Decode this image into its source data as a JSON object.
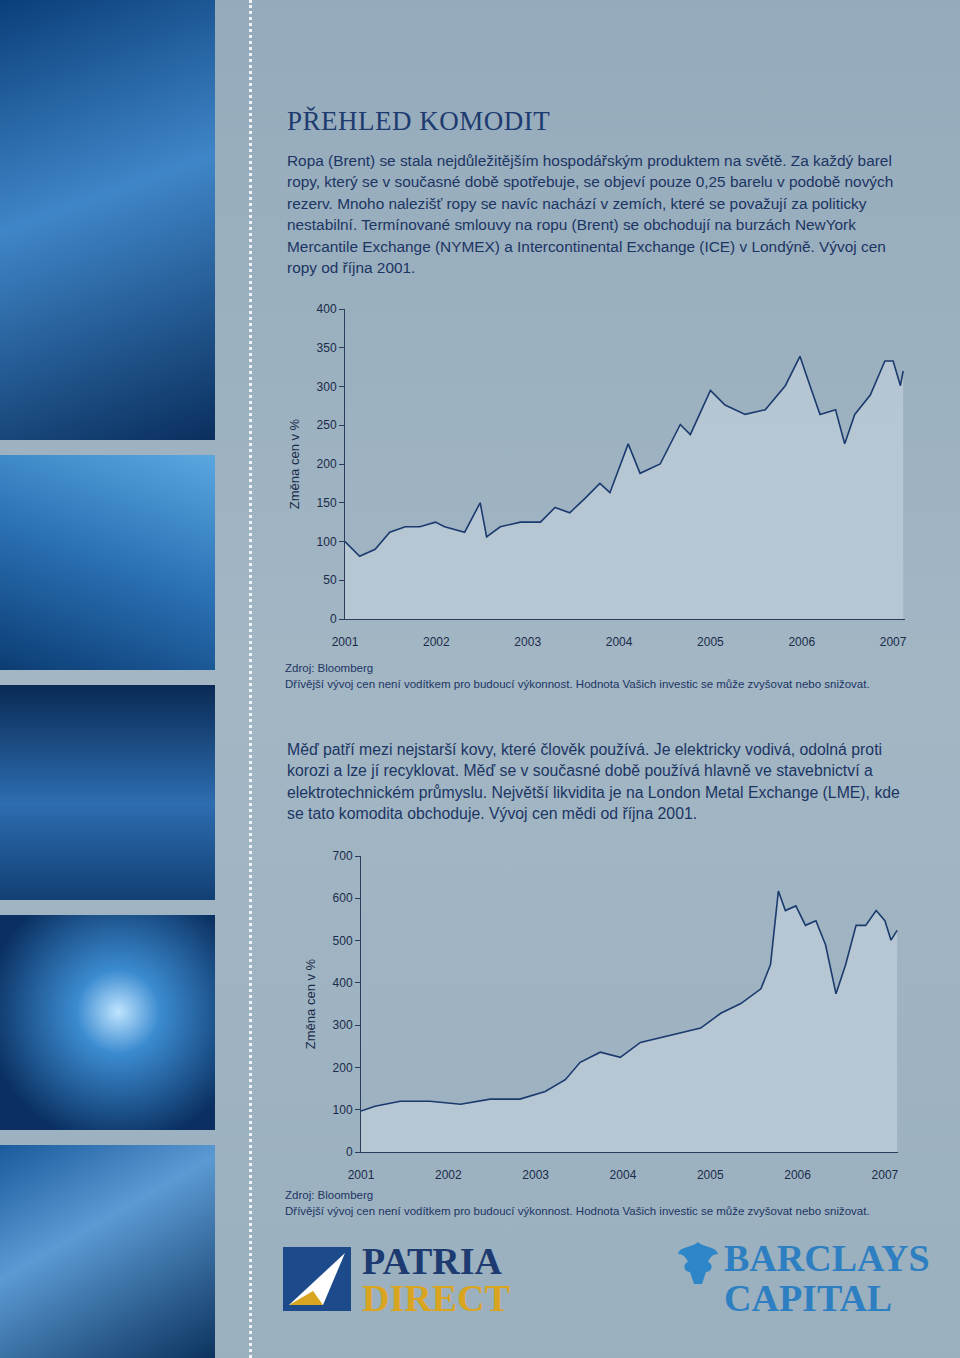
{
  "title": "PŘEHLED KOMODIT",
  "paragraphs": [
    "Ropa (Brent) se stala nejdůležitějším hospodářským produktem na světě. Za každý barel ropy, který se v současné době spotřebuje, se objeví pouze 0,25 barelu v podobě nových rezerv. Mnoho nalezišť ropy se navíc nachází v zemích, které se považují za politicky nestabilní. Termínované smlouvy na ropu (Brent) se obchodují na burzách NewYork Mercantile Exchange (NYMEX) a Intercontinental Exchange (ICE) v Londýně. Vývoj cen ropy od října 2001.",
    "Měď patří mezi nejstarší kovy, které člověk používá. Je elektricky vodivá, odolná proti korozi a lze jí recyklovat. Měď se v současné době používá hlavně ve stavebnictví a elektrotechnickém průmyslu. Největší likvidita je na London Metal Exchange (LME), kde se tato komodita obchoduje. Vývoj cen mědi od října 2001."
  ],
  "sources": [
    {
      "source": "Zdroj: Bloomberg",
      "disclaimer": "Dřívější vývoj cen není vodítkem pro budoucí výkonnost. Hodnota Vašich investic se může zvyšovat nebo snižovat."
    },
    {
      "source": "Zdroj: Bloomberg",
      "disclaimer": "Dřívější vývoj cen není vodítkem pro budoucí výkonnost. Hodnota Vašich investic se může zvyšovat nebo snižovat."
    }
  ],
  "logos": [
    {
      "lines": [
        "PATRIA",
        "DIRECT"
      ]
    },
    {
      "lines": [
        "BARCLAYS",
        "CAPITAL"
      ]
    }
  ],
  "chart_data": [
    {
      "type": "line",
      "y_label": "Změna cen v %",
      "color": "#1b3a6e",
      "x": [
        2001.0,
        2001.16,
        2001.33,
        2001.49,
        2001.66,
        2001.82,
        2001.99,
        2002.09,
        2002.31,
        2002.42,
        2002.48,
        2002.55,
        2002.7,
        2002.92,
        2003.14,
        2003.3,
        2003.46,
        2003.63,
        2003.79,
        2003.9,
        2004.1,
        2004.23,
        2004.45,
        2004.67,
        2004.78,
        2005.0,
        2005.16,
        2005.38,
        2005.6,
        2005.82,
        2005.98,
        2006.09,
        2006.2,
        2006.37,
        2006.47,
        2006.58,
        2006.75,
        2006.91,
        2007.0,
        2007.08,
        2007.11
      ],
      "values": [
        100,
        81,
        90,
        112,
        119,
        119,
        125,
        119,
        112,
        137,
        150,
        106,
        119,
        125,
        125,
        144,
        137,
        156,
        175,
        163,
        226,
        188,
        200,
        251,
        238,
        295,
        276,
        264,
        270,
        301,
        339,
        301,
        264,
        270,
        226,
        264,
        289,
        333,
        333,
        301,
        320
      ],
      "xlim": [
        2001,
        2007.13
      ],
      "xticks": [
        2001,
        2002,
        2003,
        2004,
        2005,
        2006,
        2007
      ],
      "ylim": [
        0,
        400
      ],
      "yticks": [
        0,
        50,
        100,
        150,
        200,
        250,
        300,
        350,
        400
      ],
      "grid": false
    },
    {
      "type": "line",
      "y_label": "Změna cen v %",
      "color": "#1b3a6e",
      "x": [
        2001.0,
        2001.16,
        2001.45,
        2001.79,
        2002.14,
        2002.48,
        2002.82,
        2003.11,
        2003.34,
        2003.51,
        2003.74,
        2003.97,
        2004.2,
        2004.43,
        2004.66,
        2004.89,
        2005.12,
        2005.35,
        2005.58,
        2005.69,
        2005.78,
        2005.86,
        2005.98,
        2006.09,
        2006.21,
        2006.32,
        2006.44,
        2006.55,
        2006.67,
        2006.78,
        2006.9,
        2007.0,
        2007.07,
        2007.14
      ],
      "values": [
        97,
        108,
        120,
        120,
        113,
        125,
        125,
        143,
        171,
        212,
        236,
        224,
        259,
        270,
        282,
        293,
        328,
        351,
        386,
        443,
        617,
        571,
        582,
        536,
        547,
        490,
        374,
        443,
        536,
        536,
        571,
        547,
        501,
        524
      ],
      "xlim": [
        2001,
        2007.15
      ],
      "xticks": [
        2001,
        2002,
        2003,
        2004,
        2005,
        2006,
        2007
      ],
      "ylim": [
        0,
        700
      ],
      "yticks": [
        0,
        100,
        200,
        300,
        400,
        500,
        600,
        700
      ],
      "grid": false
    }
  ]
}
